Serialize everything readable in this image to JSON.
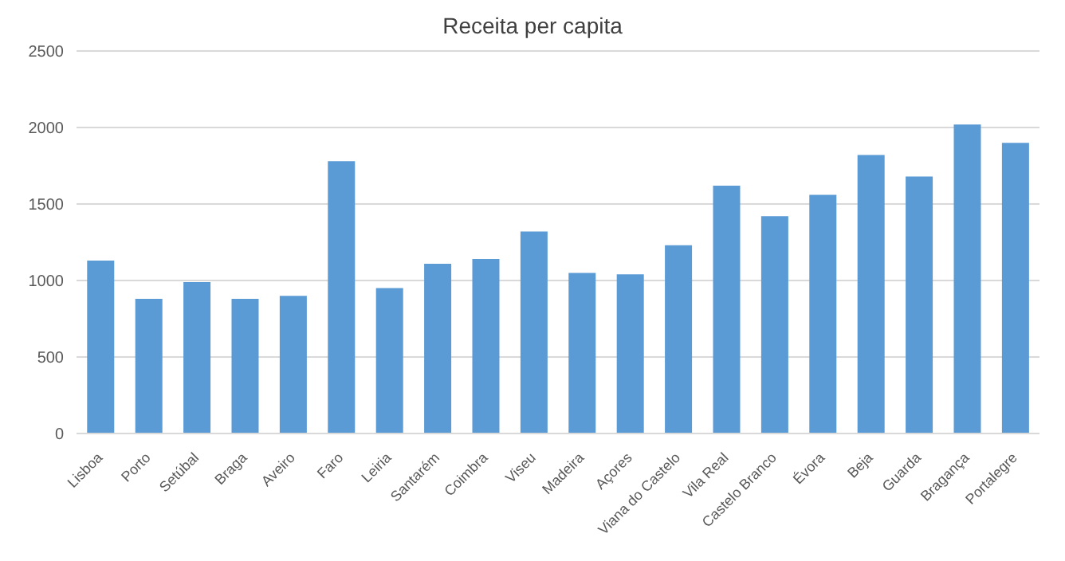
{
  "chart_data": {
    "type": "bar",
    "title": "Receita per capita",
    "categories": [
      "Lisboa",
      "Porto",
      "Setúbal",
      "Braga",
      "Aveiro",
      "Faro",
      "Leiria",
      "Santarém",
      "Coimbra",
      "Viseu",
      "Madeira",
      "Açores",
      "Viana do Castelo",
      "Vila Real",
      "Castelo Branco",
      "Évora",
      "Beja",
      "Guarda",
      "Bragança",
      "Portalegre"
    ],
    "values": [
      1130,
      880,
      990,
      880,
      900,
      1780,
      950,
      1110,
      1140,
      1320,
      1050,
      1040,
      1230,
      1620,
      1420,
      1560,
      1820,
      1680,
      2020,
      1900
    ],
    "color": "#5b9bd5",
    "ylim": [
      0,
      2500
    ],
    "yticks": [
      0,
      500,
      1000,
      1500,
      2000,
      2500
    ],
    "grid": "y"
  }
}
